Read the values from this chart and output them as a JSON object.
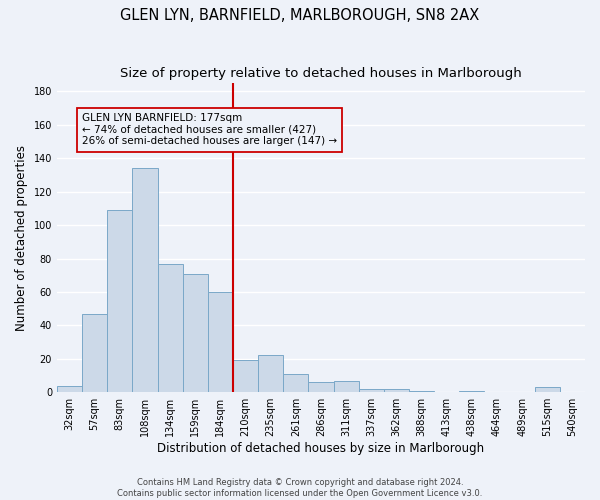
{
  "title": "GLEN LYN, BARNFIELD, MARLBOROUGH, SN8 2AX",
  "subtitle": "Size of property relative to detached houses in Marlborough",
  "xlabel": "Distribution of detached houses by size in Marlborough",
  "ylabel": "Number of detached properties",
  "categories": [
    "32sqm",
    "57sqm",
    "83sqm",
    "108sqm",
    "134sqm",
    "159sqm",
    "184sqm",
    "210sqm",
    "235sqm",
    "261sqm",
    "286sqm",
    "311sqm",
    "337sqm",
    "362sqm",
    "388sqm",
    "413sqm",
    "438sqm",
    "464sqm",
    "489sqm",
    "515sqm",
    "540sqm"
  ],
  "values": [
    4,
    47,
    109,
    134,
    77,
    71,
    60,
    19,
    22,
    11,
    6,
    7,
    2,
    2,
    1,
    0,
    1,
    0,
    0,
    3,
    0
  ],
  "bar_color": "#ccd9e8",
  "bar_edge_color": "#7aa8c8",
  "property_line_x": 6.5,
  "property_line_color": "#cc0000",
  "annotation_text": "GLEN LYN BARNFIELD: 177sqm\n← 74% of detached houses are smaller (427)\n26% of semi-detached houses are larger (147) →",
  "annotation_box_color": "#cc0000",
  "ylim": [
    0,
    185
  ],
  "yticks": [
    0,
    20,
    40,
    60,
    80,
    100,
    120,
    140,
    160,
    180
  ],
  "footer_line1": "Contains HM Land Registry data © Crown copyright and database right 2024.",
  "footer_line2": "Contains public sector information licensed under the Open Government Licence v3.0.",
  "bg_color": "#eef2f9",
  "grid_color": "#ffffff",
  "title_fontsize": 10.5,
  "subtitle_fontsize": 9.5,
  "tick_fontsize": 7,
  "label_fontsize": 8.5,
  "annotation_fontsize": 7.5,
  "footer_fontsize": 6.0
}
